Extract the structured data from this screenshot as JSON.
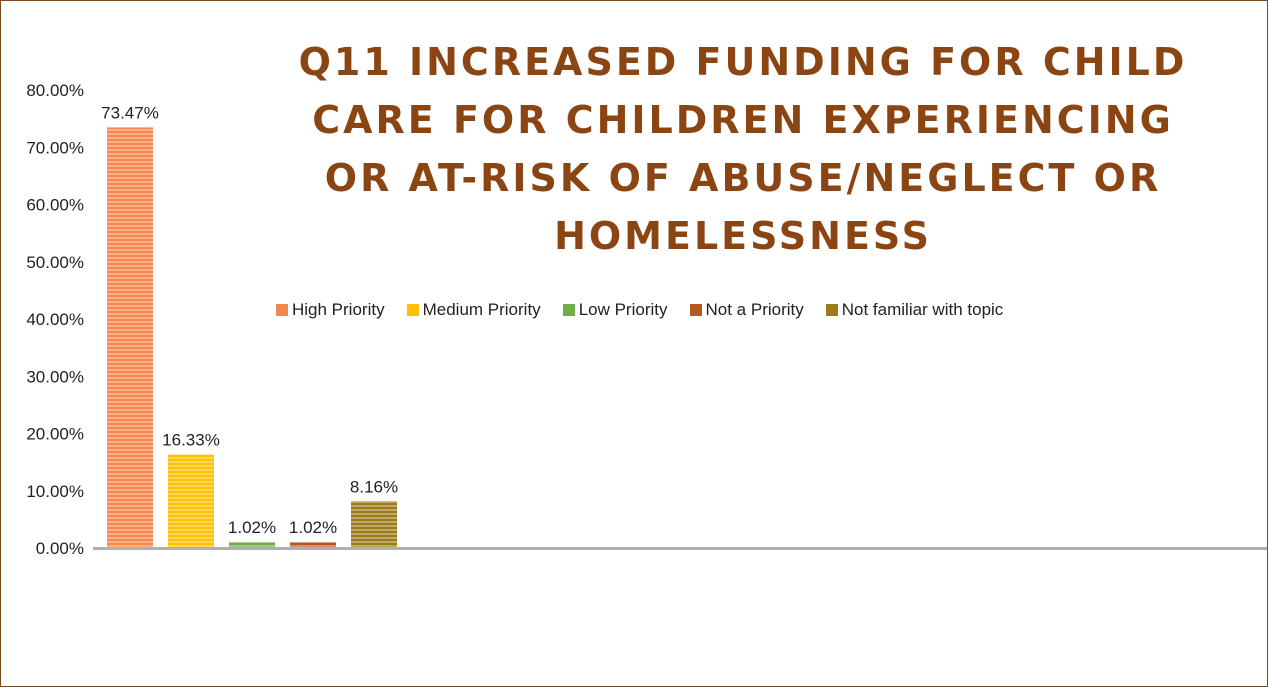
{
  "chart_data": {
    "type": "bar",
    "title": "Q11 INCREASED FUNDING FOR CHILD CARE FOR CHILDREN EXPERIENCING OR AT-RISK OF ABUSE/NEGLECT OR HOMELESSNESS",
    "xlabel": "",
    "ylabel": "",
    "ylim": [
      0,
      0.8
    ],
    "yticks": [
      "0.00%",
      "10.00%",
      "20.00%",
      "30.00%",
      "40.00%",
      "50.00%",
      "60.00%",
      "70.00%",
      "80.00%"
    ],
    "grid": false,
    "legend_position": "top",
    "series": [
      {
        "name": "High Priority",
        "value": 0.7347,
        "label": "73.47%",
        "color": "#f4874b"
      },
      {
        "name": "Medium Priority",
        "value": 0.1633,
        "label": "16.33%",
        "color": "#ffc000"
      },
      {
        "name": "Low Priority",
        "value": 0.0102,
        "label": "1.02%",
        "color": "#70ad47"
      },
      {
        "name": "Not a Priority",
        "value": 0.0102,
        "label": "1.02%",
        "color": "#b35a1f"
      },
      {
        "name": "Not familiar with topic",
        "value": 0.0816,
        "label": "8.16%",
        "color": "#9c7b1a"
      }
    ]
  }
}
